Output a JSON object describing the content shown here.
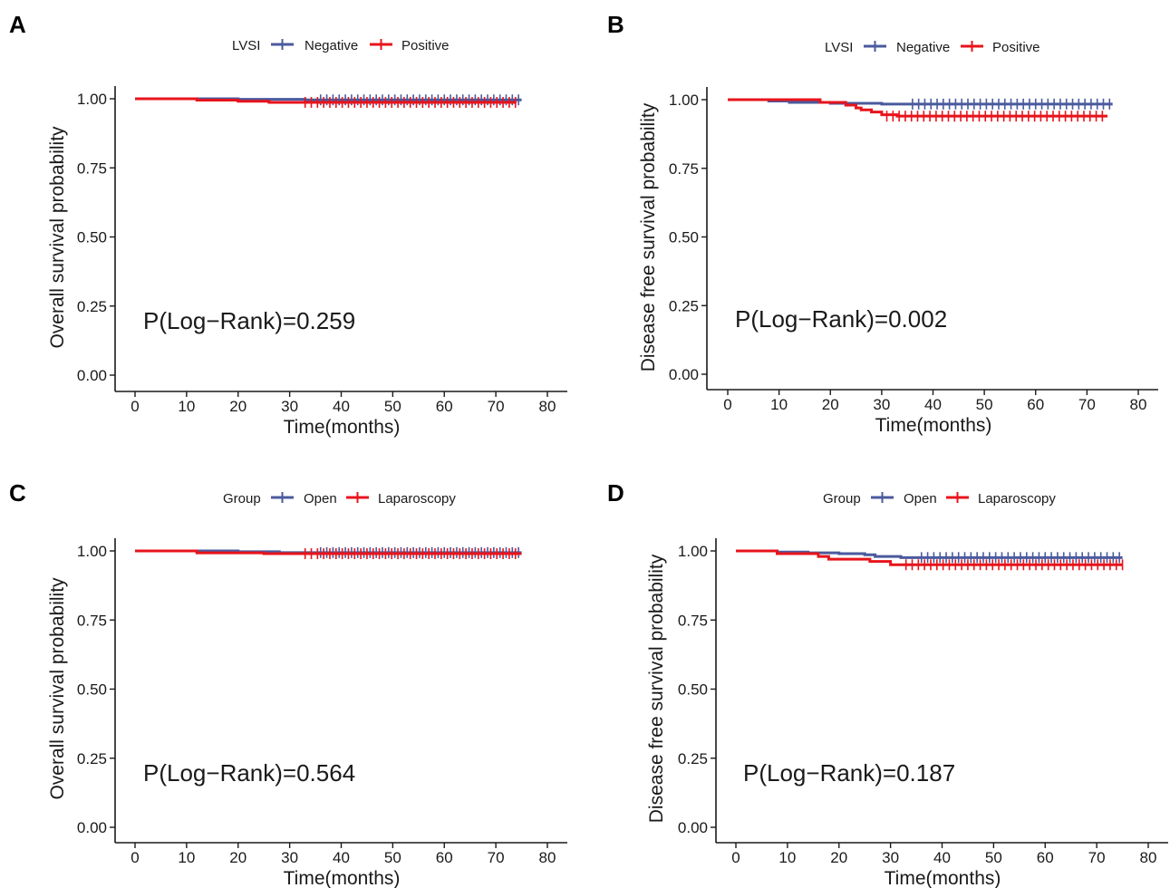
{
  "colors": {
    "blue": "#4a5a9e",
    "red": "#e8141b"
  },
  "chart_data": [
    {
      "type": "line",
      "panel": "A",
      "legend_title": "LVSI",
      "ylabel": "Overall survival probability",
      "xlabel": "Time(months)",
      "pvalue_text": "P(Log−Rank)=0.259",
      "xlim": [
        0,
        80
      ],
      "ylim": [
        0,
        1
      ],
      "x_ticks": [
        "0",
        "10",
        "20",
        "30",
        "40",
        "50",
        "60",
        "70",
        "80"
      ],
      "y_ticks": [
        "0.00",
        "0.25",
        "0.50",
        "0.75",
        "1.00"
      ],
      "legend_position": "top",
      "series": [
        {
          "name": "Negative",
          "color": "#4a5a9e",
          "steps": [
            [
              0,
              1.0
            ],
            [
              20,
              0.998
            ],
            [
              33,
              0.996
            ],
            [
              75,
              0.996
            ]
          ],
          "censor_start": 36,
          "censor_end": 75,
          "censor_y": 0.996
        },
        {
          "name": "Positive",
          "color": "#e8141b",
          "steps": [
            [
              0,
              1.0
            ],
            [
              12,
              0.995
            ],
            [
              20,
              0.991
            ],
            [
              26,
              0.987
            ],
            [
              74,
              0.987
            ]
          ],
          "censor_start": 33,
          "censor_end": 74,
          "censor_y": 0.987
        }
      ]
    },
    {
      "type": "line",
      "panel": "B",
      "legend_title": "LVSI",
      "ylabel": "Disease free survival probability",
      "xlabel": "Time(months)",
      "pvalue_text": "P(Log−Rank)=0.002",
      "xlim": [
        0,
        80
      ],
      "ylim": [
        0,
        1
      ],
      "x_ticks": [
        "0",
        "10",
        "20",
        "30",
        "40",
        "50",
        "60",
        "70",
        "80"
      ],
      "y_ticks": [
        "0.00",
        "0.25",
        "0.50",
        "0.75",
        "1.00"
      ],
      "legend_position": "top",
      "series": [
        {
          "name": "Negative",
          "color": "#4a5a9e",
          "steps": [
            [
              0,
              1.0
            ],
            [
              8,
              0.995
            ],
            [
              12,
              0.99
            ],
            [
              20,
              0.987
            ],
            [
              30,
              0.984
            ],
            [
              75,
              0.984
            ]
          ],
          "censor_start": 36,
          "censor_end": 75,
          "censor_y": 0.984
        },
        {
          "name": "Positive",
          "color": "#e8141b",
          "steps": [
            [
              0,
              1.0
            ],
            [
              18,
              0.99
            ],
            [
              23,
              0.98
            ],
            [
              25,
              0.97
            ],
            [
              26,
              0.963
            ],
            [
              28,
              0.955
            ],
            [
              30,
              0.945
            ],
            [
              33,
              0.94
            ],
            [
              74,
              0.94
            ]
          ],
          "censor_start": 31,
          "censor_end": 74,
          "censor_y": 0.94
        }
      ]
    },
    {
      "type": "line",
      "panel": "C",
      "legend_title": "Group",
      "ylabel": "Overall survival probability",
      "xlabel": "Time(months)",
      "pvalue_text": "P(Log−Rank)=0.564",
      "xlim": [
        0,
        80
      ],
      "ylim": [
        0,
        1
      ],
      "x_ticks": [
        "0",
        "10",
        "20",
        "30",
        "40",
        "50",
        "60",
        "70",
        "80"
      ],
      "y_ticks": [
        "0.00",
        "0.25",
        "0.50",
        "0.75",
        "1.00"
      ],
      "legend_position": "top",
      "series": [
        {
          "name": "Open",
          "color": "#4a5a9e",
          "steps": [
            [
              0,
              1.0
            ],
            [
              20,
              0.997
            ],
            [
              28,
              0.994
            ],
            [
              75,
              0.994
            ]
          ],
          "censor_start": 36,
          "censor_end": 75,
          "censor_y": 0.994
        },
        {
          "name": "Laparoscopy",
          "color": "#e8141b",
          "steps": [
            [
              0,
              1.0
            ],
            [
              12,
              0.993
            ],
            [
              25,
              0.99
            ],
            [
              75,
              0.99
            ]
          ],
          "censor_start": 33,
          "censor_end": 75,
          "censor_y": 0.99
        }
      ]
    },
    {
      "type": "line",
      "panel": "D",
      "legend_title": "Group",
      "ylabel": "Disease free survival probability",
      "xlabel": "Time(months)",
      "pvalue_text": "P(Log−Rank)=0.187",
      "xlim": [
        0,
        80
      ],
      "ylim": [
        0,
        1
      ],
      "x_ticks": [
        "0",
        "10",
        "20",
        "30",
        "40",
        "50",
        "60",
        "70",
        "80"
      ],
      "y_ticks": [
        "0.00",
        "0.25",
        "0.50",
        "0.75",
        "1.00"
      ],
      "legend_position": "top",
      "series": [
        {
          "name": "Open",
          "color": "#4a5a9e",
          "steps": [
            [
              0,
              1.0
            ],
            [
              8,
              0.996
            ],
            [
              14,
              0.993
            ],
            [
              20,
              0.99
            ],
            [
              25,
              0.986
            ],
            [
              27,
              0.98
            ],
            [
              32,
              0.976
            ],
            [
              75,
              0.976
            ]
          ],
          "censor_start": 36,
          "censor_end": 75,
          "censor_y": 0.976
        },
        {
          "name": "Laparoscopy",
          "color": "#e8141b",
          "steps": [
            [
              0,
              1.0
            ],
            [
              8,
              0.99
            ],
            [
              16,
              0.98
            ],
            [
              18,
              0.97
            ],
            [
              26,
              0.962
            ],
            [
              30,
              0.95
            ],
            [
              75,
              0.95
            ]
          ],
          "censor_start": 33,
          "censor_end": 76,
          "censor_y": 0.95
        }
      ]
    }
  ]
}
